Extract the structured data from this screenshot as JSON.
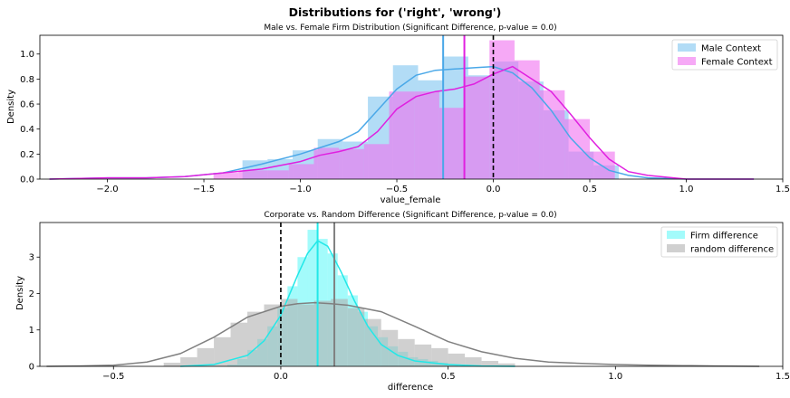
{
  "figure": {
    "suptitle": "Distributions for ('right', 'wrong')"
  },
  "chart_data": [
    {
      "type": "histogram-kde",
      "title": "Male vs. Female Firm Distribution (Significant Difference, p-value = 0.0)",
      "xlabel": "value_female",
      "ylabel": "Density",
      "xlim": [
        -2.35,
        1.5
      ],
      "ylim": [
        0,
        1.15
      ],
      "xticks": [
        -2.0,
        -1.5,
        -1.0,
        -0.5,
        0.0,
        0.5,
        1.0,
        1.5
      ],
      "xtick_labels": [
        "−2.0",
        "−1.5",
        "−1.0",
        "−0.5",
        "0.0",
        "0.5",
        "1.0",
        "1.5"
      ],
      "yticks": [
        0.0,
        0.2,
        0.4,
        0.6,
        0.8,
        1.0
      ],
      "ytick_labels": [
        "0.0",
        "0.2",
        "0.4",
        "0.6",
        "0.8",
        "1.0"
      ],
      "legend": "top-right",
      "series": [
        {
          "name": "Male Context",
          "color": "#4aa8e8",
          "fill": "#7fc4f0",
          "bin_edges": [
            -1.3,
            -1.17,
            -1.04,
            -0.91,
            -0.78,
            -0.65,
            -0.52,
            -0.39,
            -0.26,
            -0.13,
            0.0,
            0.13,
            0.26,
            0.39,
            0.52,
            0.65
          ],
          "densities": [
            0.15,
            0.16,
            0.23,
            0.32,
            0.3,
            0.66,
            0.91,
            0.79,
            0.98,
            0.83,
            0.94,
            0.78,
            0.55,
            0.22,
            0.11
          ],
          "kde_x": [
            -2.3,
            -2.0,
            -1.8,
            -1.6,
            -1.4,
            -1.2,
            -1.0,
            -0.9,
            -0.8,
            -0.7,
            -0.6,
            -0.5,
            -0.4,
            -0.3,
            -0.2,
            -0.1,
            0.0,
            0.1,
            0.2,
            0.3,
            0.4,
            0.5,
            0.6,
            0.7,
            0.8,
            1.0,
            1.2,
            1.35
          ],
          "kde_y": [
            0.0,
            0.01,
            0.01,
            0.02,
            0.05,
            0.12,
            0.2,
            0.25,
            0.3,
            0.38,
            0.55,
            0.72,
            0.83,
            0.87,
            0.88,
            0.89,
            0.9,
            0.85,
            0.73,
            0.55,
            0.33,
            0.17,
            0.07,
            0.03,
            0.01,
            0.0,
            0.0,
            0.0
          ],
          "mean": -0.26
        },
        {
          "name": "Female Context",
          "color": "#e020e0",
          "fill": "#f070f0",
          "bin_edges": [
            -1.45,
            -1.32,
            -1.19,
            -1.06,
            -0.93,
            -0.8,
            -0.67,
            -0.54,
            -0.41,
            -0.28,
            -0.15,
            -0.02,
            0.11,
            0.24,
            0.37,
            0.5,
            0.63
          ],
          "densities": [
            0.05,
            0.07,
            0.07,
            0.12,
            0.25,
            0.24,
            0.28,
            0.7,
            0.7,
            0.57,
            0.82,
            1.11,
            0.95,
            0.71,
            0.48,
            0.22
          ],
          "kde_x": [
            -2.3,
            -2.0,
            -1.8,
            -1.6,
            -1.4,
            -1.2,
            -1.0,
            -0.9,
            -0.8,
            -0.7,
            -0.6,
            -0.5,
            -0.4,
            -0.3,
            -0.2,
            -0.1,
            0.0,
            0.1,
            0.2,
            0.3,
            0.4,
            0.5,
            0.6,
            0.7,
            0.8,
            1.0,
            1.2,
            1.35
          ],
          "kde_y": [
            0.0,
            0.01,
            0.01,
            0.02,
            0.05,
            0.08,
            0.14,
            0.19,
            0.22,
            0.26,
            0.38,
            0.56,
            0.66,
            0.7,
            0.72,
            0.76,
            0.84,
            0.9,
            0.8,
            0.7,
            0.52,
            0.33,
            0.16,
            0.06,
            0.03,
            0.0,
            0.0,
            0.0
          ],
          "mean": -0.15
        }
      ],
      "reference_line": {
        "x": 0.0,
        "style": "dashed",
        "color": "#000000"
      }
    },
    {
      "type": "histogram-kde",
      "title": "Corporate vs. Random Difference (Significant Difference, p-value = 0.0)",
      "xlabel": "difference",
      "ylabel": "Density",
      "xlim": [
        -0.72,
        1.5
      ],
      "ylim": [
        0,
        3.95
      ],
      "xticks": [
        -0.5,
        0.0,
        0.5,
        1.0,
        1.5
      ],
      "xtick_labels": [
        "−0.5",
        "0.0",
        "0.5",
        "1.0",
        "1.5"
      ],
      "yticks": [
        0,
        1,
        2,
        3
      ],
      "ytick_labels": [
        "0",
        "1",
        "2",
        "3"
      ],
      "legend": "top-right",
      "series": [
        {
          "name": "Firm difference",
          "color": "#22e8e8",
          "fill": "#66f8f8",
          "bin_edges": [
            -0.16,
            -0.13,
            -0.1,
            -0.07,
            -0.04,
            -0.01,
            0.02,
            0.05,
            0.08,
            0.11,
            0.14,
            0.17,
            0.2,
            0.23,
            0.26,
            0.29,
            0.32,
            0.35,
            0.38,
            0.41,
            0.44,
            0.47,
            0.5,
            0.53
          ],
          "densities": [
            0.05,
            0.2,
            0.45,
            0.75,
            1.1,
            1.6,
            2.2,
            3.0,
            3.75,
            3.5,
            3.1,
            2.5,
            1.95,
            1.5,
            1.1,
            0.8,
            0.55,
            0.4,
            0.25,
            0.2,
            0.15,
            0.1,
            0.05
          ],
          "kde_x": [
            -0.3,
            -0.2,
            -0.1,
            -0.05,
            0.0,
            0.05,
            0.08,
            0.11,
            0.14,
            0.18,
            0.22,
            0.26,
            0.3,
            0.35,
            0.4,
            0.5,
            0.6,
            0.7
          ],
          "kde_y": [
            0.0,
            0.05,
            0.3,
            0.7,
            1.4,
            2.5,
            3.1,
            3.45,
            3.3,
            2.6,
            1.8,
            1.1,
            0.6,
            0.3,
            0.15,
            0.05,
            0.01,
            0.0
          ],
          "mean": 0.11
        },
        {
          "name": "random difference",
          "color": "#808080",
          "fill": "#b0b0b0",
          "bin_edges": [
            -0.35,
            -0.3,
            -0.25,
            -0.2,
            -0.15,
            -0.1,
            -0.05,
            0.0,
            0.05,
            0.1,
            0.15,
            0.2,
            0.25,
            0.3,
            0.35,
            0.4,
            0.45,
            0.5,
            0.55,
            0.6,
            0.65,
            0.7
          ],
          "densities": [
            0.1,
            0.25,
            0.5,
            0.8,
            1.2,
            1.5,
            1.7,
            1.85,
            1.7,
            1.8,
            1.85,
            1.6,
            1.3,
            1.0,
            0.75,
            0.6,
            0.5,
            0.35,
            0.25,
            0.15,
            0.08
          ],
          "kde_x": [
            -0.7,
            -0.6,
            -0.5,
            -0.4,
            -0.3,
            -0.2,
            -0.1,
            0.0,
            0.05,
            0.1,
            0.15,
            0.2,
            0.3,
            0.4,
            0.5,
            0.6,
            0.7,
            0.8,
            0.9,
            1.0,
            1.1,
            1.2,
            1.3,
            1.43
          ],
          "kde_y": [
            0.0,
            0.01,
            0.03,
            0.12,
            0.35,
            0.8,
            1.35,
            1.65,
            1.72,
            1.75,
            1.72,
            1.68,
            1.5,
            1.1,
            0.68,
            0.4,
            0.22,
            0.12,
            0.08,
            0.05,
            0.03,
            0.02,
            0.01,
            0.0
          ],
          "mean": 0.16
        }
      ],
      "reference_line": {
        "x": 0.0,
        "style": "dashed",
        "color": "#000000"
      }
    }
  ]
}
